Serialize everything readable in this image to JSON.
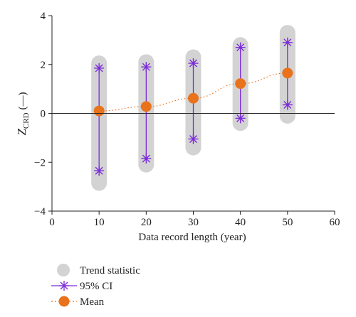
{
  "chart_data": {
    "type": "scatter",
    "xlabel": "Data record length (year)",
    "ylabel_main": "Z",
    "ylabel_sub": "CRD",
    "ylabel_unit": "(—)",
    "xlim": [
      0,
      60
    ],
    "ylim": [
      -4,
      4
    ],
    "x_ticks": [
      0,
      10,
      20,
      30,
      40,
      50,
      60
    ],
    "y_ticks": [
      -4,
      -2,
      0,
      2,
      4
    ],
    "x_tick_labels": [
      "0",
      "10",
      "20",
      "30",
      "40",
      "50",
      "60"
    ],
    "y_tick_labels": [
      "−4",
      "−2",
      "0",
      "2",
      "4"
    ],
    "zero_line": true,
    "legend_placement": "bottom-left",
    "colors": {
      "trend": "#d3d3d3",
      "ci": "#7b2bd9",
      "mean": "#e8731c"
    },
    "series": [
      {
        "name": "Trend statistic",
        "kind": "range",
        "x": [
          10,
          20,
          30,
          40,
          50
        ],
        "low": [
          -2.85,
          -2.1,
          -1.4,
          -0.4,
          -0.1
        ],
        "high": [
          2.05,
          2.1,
          2.3,
          2.8,
          3.3
        ]
      },
      {
        "name": "95% CI",
        "kind": "interval",
        "x": [
          10,
          20,
          30,
          40,
          50
        ],
        "lower": [
          -2.35,
          -1.85,
          -1.05,
          -0.2,
          0.35
        ],
        "upper": [
          1.85,
          1.9,
          2.05,
          2.7,
          2.9
        ]
      },
      {
        "name": "Mean",
        "kind": "points",
        "x": [
          10,
          20,
          30,
          40,
          50
        ],
        "y": [
          0.1,
          0.28,
          0.62,
          1.22,
          1.65
        ]
      }
    ]
  }
}
